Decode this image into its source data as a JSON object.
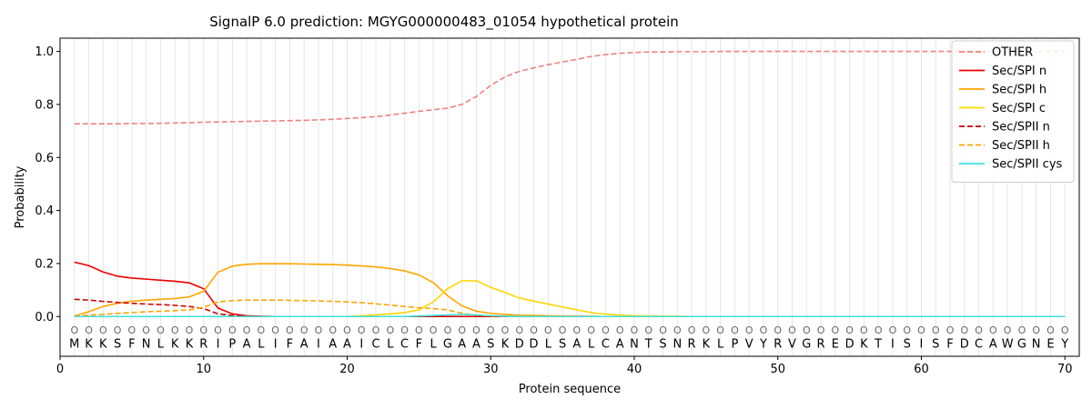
{
  "chart_data": {
    "type": "line",
    "title": "SignalP 6.0 prediction: MGYG000000483_01054 hypothetical protein",
    "xlabel": "Protein sequence",
    "ylabel": "Probability",
    "xlim": [
      0,
      71
    ],
    "ylim": [
      -0.15,
      1.05
    ],
    "xticks": [
      0,
      10,
      20,
      30,
      40,
      50,
      60,
      70
    ],
    "yticks": [
      0.0,
      0.2,
      0.4,
      0.6,
      0.8,
      1.0
    ],
    "ytick_labels": [
      "0.0",
      "0.2",
      "0.4",
      "0.6",
      "0.8",
      "1.0"
    ],
    "legend_position": "top-right",
    "sequence": "MKKSFNLKKRIPALIFAIAAICLCFLGAASKDDLSALCANTSNRKLPVYRVGREDKTISISFDCAWGNEY",
    "position_glyph": "O",
    "x": [
      1,
      2,
      3,
      4,
      5,
      6,
      7,
      8,
      9,
      10,
      11,
      12,
      13,
      14,
      15,
      16,
      17,
      18,
      19,
      20,
      21,
      22,
      23,
      24,
      25,
      26,
      27,
      28,
      29,
      30,
      31,
      32,
      33,
      34,
      35,
      36,
      37,
      38,
      39,
      40,
      41,
      42,
      43,
      44,
      45,
      46,
      47,
      48,
      49,
      50,
      51,
      52,
      53,
      54,
      55,
      56,
      57,
      58,
      59,
      60,
      61,
      62,
      63,
      64,
      65,
      66,
      67,
      68,
      69,
      70
    ],
    "series": [
      {
        "name": "OTHER",
        "color": "#f08080",
        "dash": "dashed",
        "values": [
          0.727,
          0.727,
          0.727,
          0.727,
          0.728,
          0.728,
          0.729,
          0.73,
          0.731,
          0.733,
          0.734,
          0.735,
          0.736,
          0.737,
          0.738,
          0.739,
          0.74,
          0.742,
          0.744,
          0.747,
          0.75,
          0.754,
          0.76,
          0.767,
          0.774,
          0.78,
          0.786,
          0.8,
          0.83,
          0.872,
          0.904,
          0.925,
          0.938,
          0.95,
          0.96,
          0.97,
          0.981,
          0.988,
          0.993,
          0.996,
          0.998,
          0.998,
          0.999,
          0.999,
          0.999,
          1.0,
          1.0,
          1.0,
          1.0,
          1.0,
          1.0,
          1.0,
          1.0,
          1.0,
          1.0,
          1.0,
          1.0,
          1.0,
          1.0,
          1.0,
          1.0,
          1.0,
          1.0,
          1.0,
          1.0,
          1.0,
          1.0,
          1.0,
          1.0,
          1.0
        ]
      },
      {
        "name": "Sec/SPI n",
        "color": "#ee0000",
        "dash": "solid",
        "values": [
          0.205,
          0.192,
          0.168,
          0.152,
          0.145,
          0.141,
          0.137,
          0.133,
          0.127,
          0.105,
          0.032,
          0.01,
          0.003,
          0.001,
          0,
          0,
          0,
          0,
          0,
          0,
          0,
          0,
          0,
          0,
          0,
          0,
          0,
          0,
          0,
          0,
          0,
          0,
          0,
          0,
          0,
          0,
          0,
          0,
          0,
          0,
          0,
          0,
          0,
          0,
          0,
          0,
          0,
          0,
          0,
          0,
          0,
          0,
          0,
          0,
          0,
          0,
          0,
          0,
          0,
          0,
          0,
          0,
          0,
          0,
          0,
          0,
          0,
          0,
          0,
          0
        ]
      },
      {
        "name": "Sec/SPI h",
        "color": "#ffa500",
        "dash": "solid",
        "values": [
          0.002,
          0.018,
          0.038,
          0.05,
          0.058,
          0.062,
          0.065,
          0.068,
          0.074,
          0.095,
          0.167,
          0.19,
          0.197,
          0.199,
          0.199,
          0.199,
          0.198,
          0.197,
          0.196,
          0.194,
          0.191,
          0.187,
          0.181,
          0.172,
          0.157,
          0.128,
          0.078,
          0.04,
          0.02,
          0.012,
          0.008,
          0.005,
          0.004,
          0.003,
          0.002,
          0.001,
          0.001,
          0,
          0,
          0,
          0,
          0,
          0,
          0,
          0,
          0,
          0,
          0,
          0,
          0,
          0,
          0,
          0,
          0,
          0,
          0,
          0,
          0,
          0,
          0,
          0,
          0,
          0,
          0,
          0,
          0,
          0,
          0,
          0,
          0
        ]
      },
      {
        "name": "Sec/SPI c",
        "color": "#ffd700",
        "dash": "solid",
        "values": [
          0,
          0,
          0,
          0,
          0,
          0,
          0,
          0,
          0,
          0,
          0,
          0,
          0,
          0,
          0,
          0,
          0,
          0,
          0,
          0,
          0.003,
          0.006,
          0.01,
          0.015,
          0.025,
          0.055,
          0.105,
          0.135,
          0.135,
          0.11,
          0.09,
          0.07,
          0.058,
          0.047,
          0.036,
          0.025,
          0.015,
          0.009,
          0.005,
          0.003,
          0.002,
          0.001,
          0.001,
          0,
          0,
          0,
          0,
          0,
          0,
          0,
          0,
          0,
          0,
          0,
          0,
          0,
          0,
          0,
          0,
          0,
          0,
          0,
          0,
          0,
          0,
          0,
          0,
          0,
          0,
          0
        ]
      },
      {
        "name": "Sec/SPII n",
        "color": "#cc0000",
        "dash": "dashed",
        "values": [
          0.065,
          0.062,
          0.057,
          0.053,
          0.05,
          0.047,
          0.045,
          0.042,
          0.038,
          0.03,
          0.01,
          0.004,
          0.001,
          0,
          0,
          0,
          0,
          0,
          0,
          0,
          0,
          0,
          0,
          0,
          0,
          0,
          0,
          0,
          0,
          0,
          0,
          0,
          0,
          0,
          0,
          0,
          0,
          0,
          0,
          0,
          0,
          0,
          0,
          0,
          0,
          0,
          0,
          0,
          0,
          0,
          0,
          0,
          0,
          0,
          0,
          0,
          0,
          0,
          0,
          0,
          0,
          0,
          0,
          0,
          0,
          0,
          0,
          0,
          0,
          0
        ]
      },
      {
        "name": "Sec/SPII h",
        "color": "#ffa500",
        "dash": "dashed",
        "values": [
          0.001,
          0.005,
          0.008,
          0.012,
          0.015,
          0.018,
          0.02,
          0.022,
          0.025,
          0.035,
          0.055,
          0.06,
          0.062,
          0.062,
          0.062,
          0.061,
          0.06,
          0.059,
          0.057,
          0.055,
          0.052,
          0.048,
          0.043,
          0.038,
          0.033,
          0.03,
          0.025,
          0.012,
          0.005,
          0.002,
          0.001,
          0,
          0,
          0,
          0,
          0,
          0,
          0,
          0,
          0,
          0,
          0,
          0,
          0,
          0,
          0,
          0,
          0,
          0,
          0,
          0,
          0,
          0,
          0,
          0,
          0,
          0,
          0,
          0,
          0,
          0,
          0,
          0,
          0,
          0,
          0,
          0,
          0,
          0,
          0
        ]
      },
      {
        "name": "Sec/SPII cys",
        "color": "#40e0e0",
        "dash": "solid",
        "values": [
          0,
          0,
          0,
          0,
          0,
          0,
          0,
          0,
          0,
          0,
          0,
          0,
          0,
          0,
          0,
          0,
          0,
          0,
          0,
          0,
          0,
          0,
          0,
          0,
          0.002,
          0.004,
          0.006,
          0.008,
          0.006,
          0.003,
          0.001,
          0,
          0,
          0,
          0,
          0,
          0,
          0,
          0,
          0,
          0,
          0,
          0,
          0,
          0,
          0,
          0,
          0,
          0,
          0,
          0,
          0,
          0,
          0,
          0,
          0,
          0,
          0,
          0,
          0,
          0,
          0,
          0,
          0,
          0,
          0,
          0,
          0,
          0,
          0
        ]
      }
    ]
  }
}
